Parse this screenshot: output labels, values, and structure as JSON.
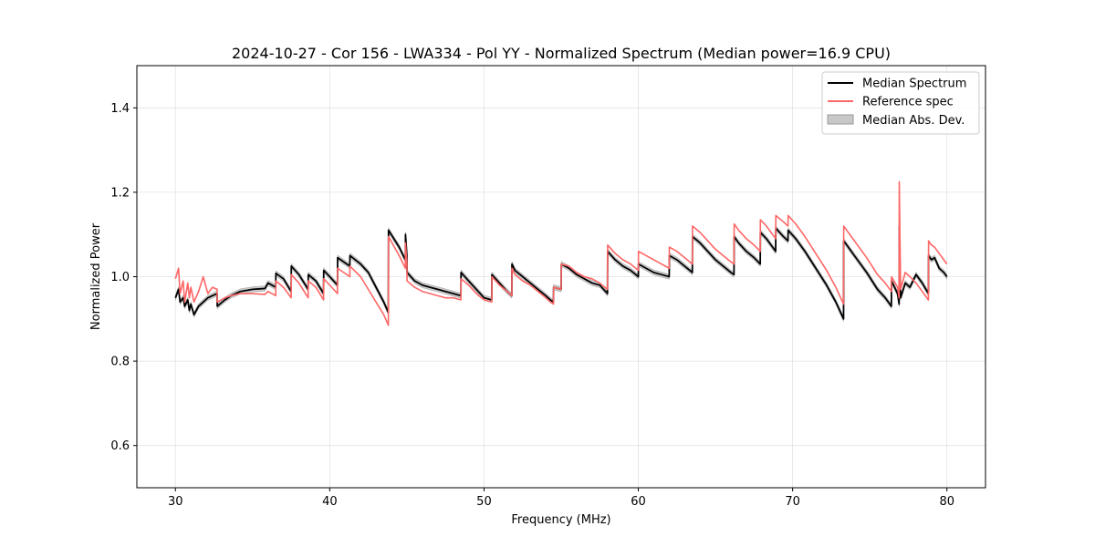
{
  "chart_data": {
    "type": "line",
    "title": "2024-10-27 - Cor 156 - LWA334 - Pol YY - Normalized Spectrum (Median power=16.9 CPU)",
    "xlabel": "Frequency (MHz)",
    "ylabel": "Normalized Power",
    "xlim": [
      27.5,
      82.5
    ],
    "ylim": [
      0.5,
      1.5
    ],
    "xticks": [
      30,
      40,
      50,
      60,
      70,
      80
    ],
    "yticks": [
      0.6,
      0.8,
      1.0,
      1.2,
      1.4
    ],
    "xtick_labels": [
      "30",
      "40",
      "50",
      "60",
      "70",
      "80"
    ],
    "ytick_labels": [
      "0.6",
      "0.8",
      "1.0",
      "1.2",
      "1.4"
    ],
    "grid": true,
    "legend_position": "top-right",
    "legend": [
      "Median Spectrum",
      "Reference spec",
      "Median Abs. Dev."
    ],
    "colors": {
      "median": "#000000",
      "reference": "#ff6666",
      "mad": "#c8c8c8"
    },
    "series": [
      {
        "name": "Median Spectrum",
        "x": [
          30.0,
          30.2,
          30.3,
          30.5,
          30.6,
          30.8,
          30.9,
          31.0,
          31.2,
          31.5,
          31.8,
          32.1,
          32.4,
          32.7,
          32.71,
          33.2,
          33.6,
          34.2,
          35.0,
          35.8,
          36.0,
          36.5,
          36.51,
          37.0,
          37.5,
          37.51,
          38.0,
          38.6,
          38.61,
          39.1,
          39.6,
          39.61,
          40.0,
          40.5,
          40.51,
          41.3,
          41.31,
          42.0,
          42.5,
          43.0,
          43.5,
          43.8,
          43.81,
          44.5,
          44.9,
          44.91,
          45.0,
          45.01,
          45.5,
          46.0,
          46.5,
          47.0,
          47.5,
          48.0,
          48.5,
          48.51,
          49.0,
          49.5,
          50.0,
          50.5,
          50.51,
          51.0,
          51.5,
          51.8,
          51.81,
          52.0,
          52.5,
          53.0,
          53.5,
          54.0,
          54.3,
          54.5,
          54.51,
          55.0,
          55.01,
          55.5,
          56.0,
          56.5,
          57.0,
          57.5,
          58.0,
          58.01,
          58.5,
          59.0,
          59.5,
          60.0,
          60.01,
          60.5,
          61.0,
          61.5,
          62.0,
          62.01,
          62.5,
          63.0,
          63.5,
          63.51,
          64.0,
          64.5,
          65.0,
          65.5,
          66.0,
          66.2,
          66.21,
          66.5,
          67.0,
          67.5,
          67.9,
          67.91,
          68.3,
          68.6,
          68.9,
          68.91,
          69.4,
          69.7,
          69.71,
          70.2,
          70.8,
          71.5,
          72.2,
          72.8,
          73.3,
          73.31,
          74.0,
          74.8,
          75.5,
          76.0,
          76.4,
          76.41,
          76.8,
          76.9,
          76.91,
          77.0,
          77.3,
          77.6,
          78.0,
          78.4,
          78.8,
          78.81,
          79.0,
          79.2,
          79.5,
          79.8,
          80.0
        ],
        "y": [
          0.95,
          0.97,
          0.94,
          0.95,
          0.93,
          0.945,
          0.92,
          0.935,
          0.91,
          0.93,
          0.94,
          0.95,
          0.955,
          0.96,
          0.93,
          0.945,
          0.955,
          0.965,
          0.97,
          0.972,
          0.985,
          0.975,
          1.008,
          0.995,
          0.965,
          1.025,
          1.005,
          0.97,
          1.005,
          0.99,
          0.96,
          1.015,
          1.0,
          0.98,
          1.045,
          1.025,
          1.05,
          1.03,
          1.01,
          0.975,
          0.94,
          0.915,
          1.11,
          1.07,
          1.04,
          1.1,
          1.05,
          1.01,
          0.99,
          0.98,
          0.975,
          0.97,
          0.965,
          0.96,
          0.955,
          1.01,
          0.99,
          0.97,
          0.95,
          0.945,
          1.005,
          0.985,
          0.965,
          0.955,
          1.03,
          1.015,
          1.0,
          0.985,
          0.97,
          0.955,
          0.945,
          0.94,
          0.975,
          0.97,
          1.03,
          1.02,
          1.005,
          0.995,
          0.985,
          0.98,
          0.96,
          1.06,
          1.04,
          1.025,
          1.015,
          1.0,
          1.03,
          1.02,
          1.01,
          1.005,
          1.0,
          1.05,
          1.04,
          1.025,
          1.01,
          1.095,
          1.08,
          1.06,
          1.04,
          1.025,
          1.01,
          1.005,
          1.095,
          1.08,
          1.06,
          1.045,
          1.03,
          1.105,
          1.09,
          1.075,
          1.06,
          1.115,
          1.095,
          1.085,
          1.11,
          1.09,
          1.06,
          1.02,
          0.98,
          0.94,
          0.9,
          1.085,
          1.05,
          1.01,
          0.97,
          0.95,
          0.93,
          0.99,
          0.96,
          0.935,
          1.12,
          0.95,
          0.985,
          0.975,
          1.005,
          0.985,
          0.96,
          1.05,
          1.04,
          1.045,
          1.02,
          1.01,
          1.0
        ]
      },
      {
        "name": "Reference spec",
        "x": [
          30.0,
          30.2,
          30.3,
          30.5,
          30.6,
          30.8,
          30.9,
          31.0,
          31.2,
          31.5,
          31.8,
          32.1,
          32.4,
          32.7,
          32.71,
          33.2,
          33.6,
          34.2,
          35.0,
          35.8,
          36.0,
          36.5,
          36.51,
          37.0,
          37.5,
          37.51,
          38.0,
          38.6,
          38.61,
          39.1,
          39.6,
          39.61,
          40.0,
          40.5,
          40.51,
          41.3,
          41.31,
          42.0,
          42.5,
          43.0,
          43.5,
          43.8,
          43.81,
          44.5,
          44.9,
          44.91,
          45.0,
          45.01,
          45.5,
          46.0,
          46.5,
          47.0,
          47.5,
          48.0,
          48.5,
          48.51,
          49.0,
          49.5,
          50.0,
          50.5,
          50.51,
          51.0,
          51.5,
          51.8,
          51.81,
          52.0,
          52.5,
          53.0,
          53.5,
          54.0,
          54.3,
          54.5,
          54.51,
          55.0,
          55.01,
          55.5,
          56.0,
          56.5,
          57.0,
          57.5,
          58.0,
          58.01,
          58.5,
          59.0,
          59.5,
          60.0,
          60.01,
          60.5,
          61.0,
          61.5,
          62.0,
          62.01,
          62.5,
          63.0,
          63.5,
          63.51,
          64.0,
          64.5,
          65.0,
          65.5,
          66.0,
          66.2,
          66.21,
          66.5,
          67.0,
          67.5,
          67.9,
          67.91,
          68.3,
          68.6,
          68.9,
          68.91,
          69.4,
          69.7,
          69.71,
          70.2,
          70.8,
          71.5,
          72.2,
          72.8,
          73.3,
          73.31,
          74.0,
          74.8,
          75.5,
          76.0,
          76.4,
          76.41,
          76.8,
          76.9,
          76.91,
          77.0,
          77.3,
          77.6,
          78.0,
          78.4,
          78.8,
          78.81,
          79.0,
          79.2,
          79.5,
          79.8,
          80.0
        ],
        "y": [
          0.995,
          1.02,
          0.96,
          0.99,
          0.94,
          0.985,
          0.95,
          0.975,
          0.94,
          0.965,
          1.0,
          0.96,
          0.975,
          0.97,
          0.94,
          0.95,
          0.955,
          0.96,
          0.96,
          0.958,
          0.965,
          0.955,
          0.99,
          0.975,
          0.95,
          1.005,
          0.985,
          0.95,
          0.99,
          0.975,
          0.945,
          0.995,
          0.98,
          0.96,
          1.02,
          1.0,
          1.025,
          1.0,
          0.97,
          0.94,
          0.91,
          0.885,
          1.095,
          1.05,
          1.02,
          1.08,
          1.03,
          0.99,
          0.975,
          0.965,
          0.96,
          0.955,
          0.95,
          0.95,
          0.945,
          0.995,
          0.98,
          0.96,
          0.945,
          0.94,
          1.0,
          0.98,
          0.965,
          0.955,
          1.02,
          1.005,
          0.99,
          0.98,
          0.965,
          0.95,
          0.94,
          0.935,
          0.975,
          0.97,
          1.03,
          1.025,
          1.01,
          1.0,
          0.995,
          0.985,
          0.97,
          1.075,
          1.055,
          1.04,
          1.03,
          1.015,
          1.06,
          1.05,
          1.04,
          1.03,
          1.02,
          1.07,
          1.06,
          1.045,
          1.03,
          1.12,
          1.105,
          1.085,
          1.065,
          1.05,
          1.035,
          1.03,
          1.125,
          1.11,
          1.09,
          1.075,
          1.06,
          1.135,
          1.12,
          1.105,
          1.09,
          1.145,
          1.13,
          1.12,
          1.145,
          1.125,
          1.095,
          1.055,
          1.015,
          0.975,
          0.935,
          1.12,
          1.085,
          1.045,
          1.005,
          0.985,
          0.965,
          1.0,
          0.975,
          0.95,
          1.225,
          0.97,
          1.01,
          1.0,
          0.985,
          0.965,
          0.945,
          1.085,
          1.075,
          1.07,
          1.055,
          1.04,
          1.03
        ]
      }
    ],
    "mad_halfwidth": 0.006
  }
}
